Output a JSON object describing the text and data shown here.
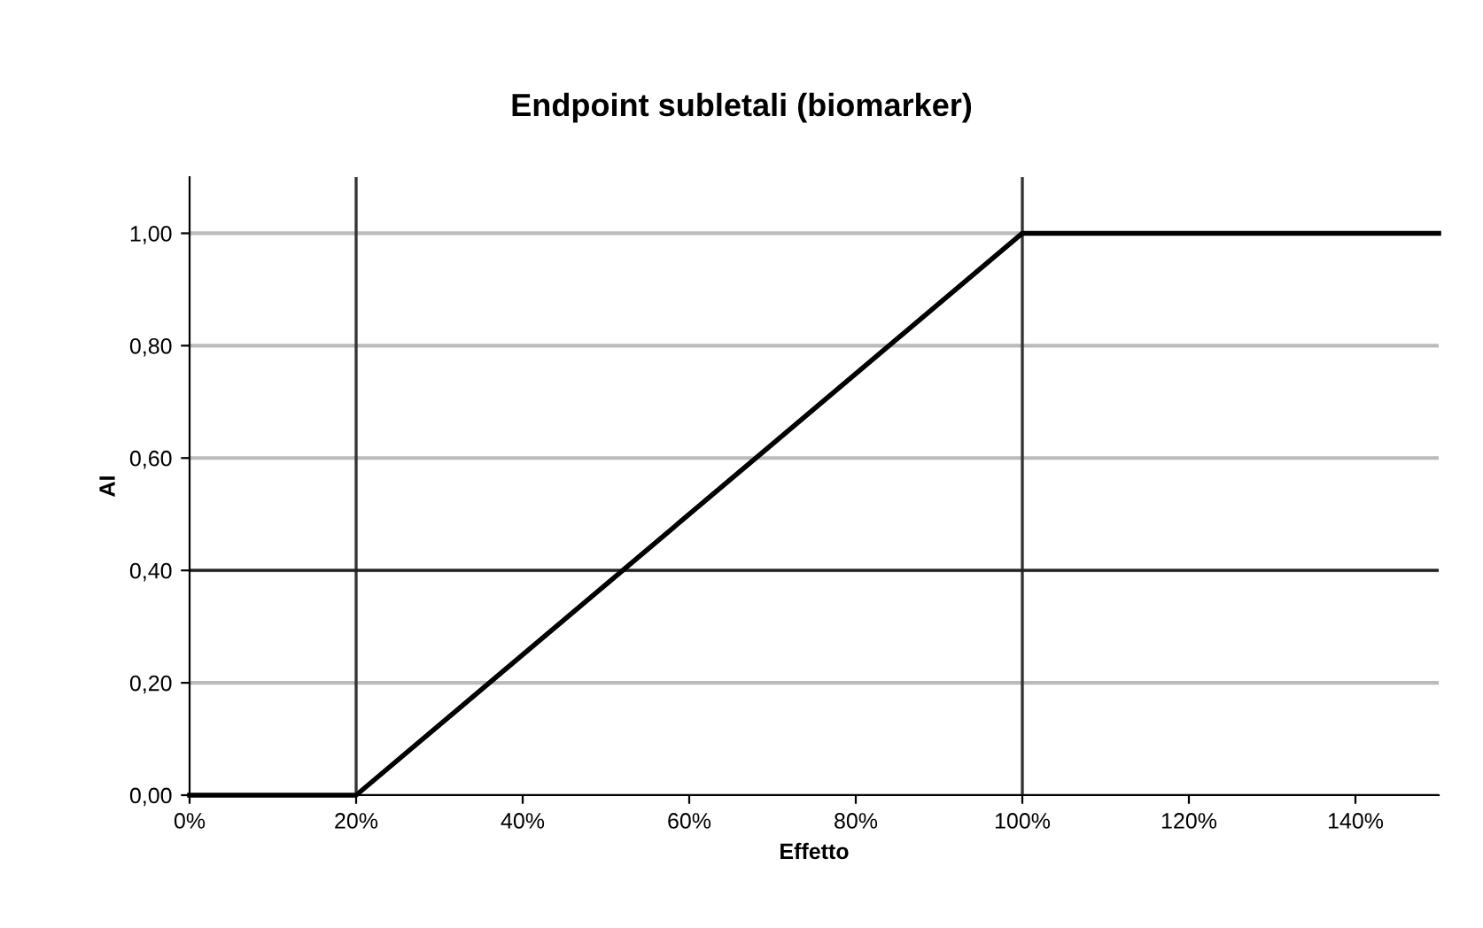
{
  "chart_data": {
    "type": "line",
    "title": "Endpoint subletali (biomarker)",
    "xlabel": "Effetto",
    "ylabel": "AI",
    "x": [
      0,
      20,
      100,
      150
    ],
    "series": [
      {
        "color": "#000000",
        "values": [
          0,
          0,
          1,
          1
        ]
      }
    ],
    "xlim": [
      0,
      150
    ],
    "ylim": [
      0,
      1.1
    ],
    "xticks": [
      {
        "value": 0,
        "label": "0%"
      },
      {
        "value": 20,
        "label": "20%"
      },
      {
        "value": 40,
        "label": "40%"
      },
      {
        "value": 60,
        "label": "60%"
      },
      {
        "value": 80,
        "label": "80%"
      },
      {
        "value": 100,
        "label": "100%"
      },
      {
        "value": 120,
        "label": "120%"
      },
      {
        "value": 140,
        "label": "140%"
      }
    ],
    "yticks": [
      {
        "value": 0,
        "label": "0,00"
      },
      {
        "value": 0.2,
        "label": "0,20"
      },
      {
        "value": 0.4,
        "label": "0,40"
      },
      {
        "value": 0.6,
        "label": "0,60"
      },
      {
        "value": 0.8,
        "label": "0,80"
      },
      {
        "value": 1,
        "label": "1,00"
      }
    ],
    "ref_lines": [
      {
        "axis": "x",
        "value": 20,
        "color": "#333333"
      },
      {
        "axis": "x",
        "value": 100,
        "color": "#333333"
      },
      {
        "axis": "y",
        "value": 0.4,
        "color": "#222222"
      }
    ],
    "grid": "y",
    "marker": "none",
    "line_style": "solid"
  }
}
